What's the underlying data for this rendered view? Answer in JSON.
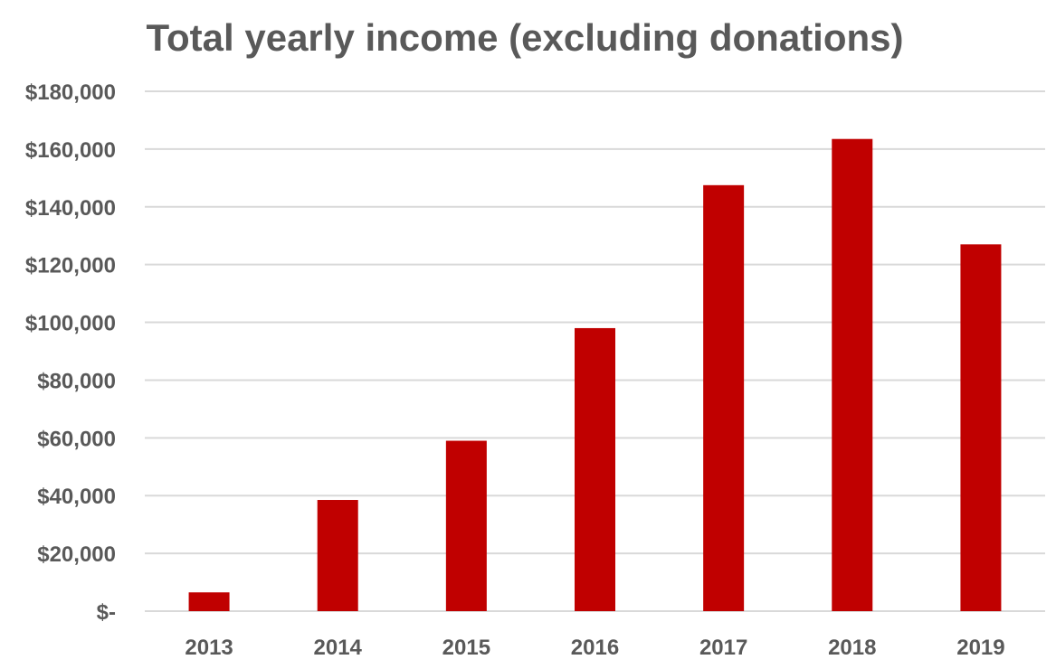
{
  "chart_data": {
    "type": "bar",
    "title": "Total yearly income (excluding donations)",
    "xlabel": "",
    "ylabel": "",
    "categories": [
      "2013",
      "2014",
      "2015",
      "2016",
      "2017",
      "2018",
      "2019"
    ],
    "values": [
      6500,
      38500,
      59000,
      98000,
      147500,
      163500,
      127000
    ],
    "ylim": [
      0,
      180000
    ],
    "y_ticks": [
      0,
      20000,
      40000,
      60000,
      80000,
      100000,
      120000,
      140000,
      160000,
      180000
    ],
    "y_tick_labels": [
      "$-",
      "$20,000",
      "$40,000",
      "$60,000",
      "$80,000",
      "$100,000",
      "$120,000",
      "$140,000",
      "$160,000",
      "$180,000"
    ],
    "grid": true,
    "legend": "none",
    "bar_color": "#C00000",
    "grid_color": "#D9D9D9",
    "text_color": "#595959"
  }
}
